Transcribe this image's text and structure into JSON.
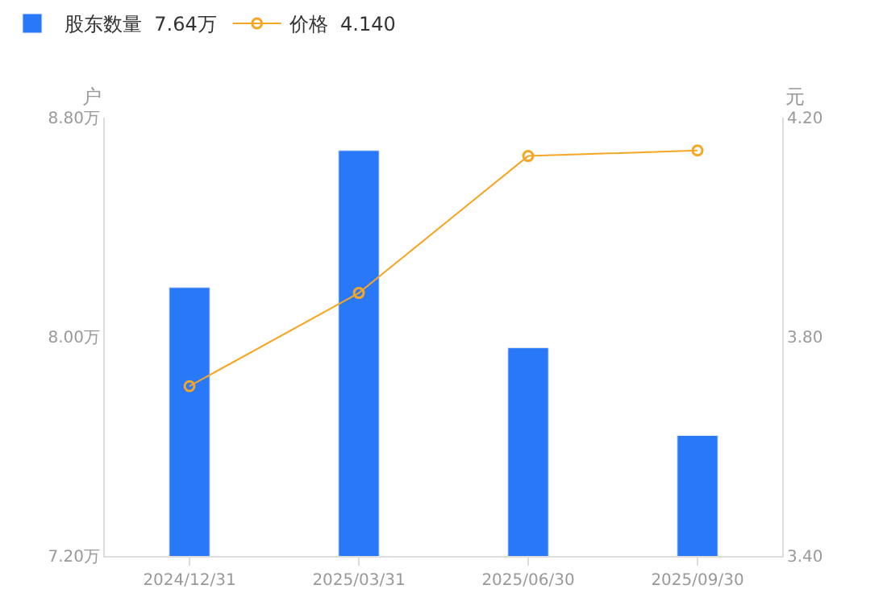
{
  "chart_data": {
    "type": "bar",
    "categories": [
      "2024/12/31",
      "2025/03/31",
      "2025/06/30",
      "2025/09/30"
    ],
    "ylabel": "户",
    "y2label": "元",
    "series": [
      {
        "name": "股东数量  7.64万",
        "color": "#2878f8",
        "values": [
          8.18,
          8.68,
          7.96,
          7.64
        ]
      },
      {
        "name": "价格  4.140",
        "type": "line",
        "axis": "y2",
        "color": "#f5a623",
        "values": [
          3.71,
          3.88,
          4.13,
          4.14
        ]
      }
    ],
    "ylim": [
      7.2,
      8.8
    ],
    "yticks": [
      {
        "value": 7.2,
        "label": "7.20万"
      },
      {
        "value": 8.0,
        "label": "8.00万"
      },
      {
        "value": 8.8,
        "label": "8.80万"
      }
    ],
    "y2lim": [
      3.4,
      4.2
    ],
    "y2ticks": [
      {
        "value": 3.4,
        "label": "3.40"
      },
      {
        "value": 3.8,
        "label": "3.80"
      },
      {
        "value": 4.2,
        "label": "4.20"
      }
    ],
    "legend": "top left",
    "marker": "circle",
    "line_style": "solid",
    "grid": false
  }
}
